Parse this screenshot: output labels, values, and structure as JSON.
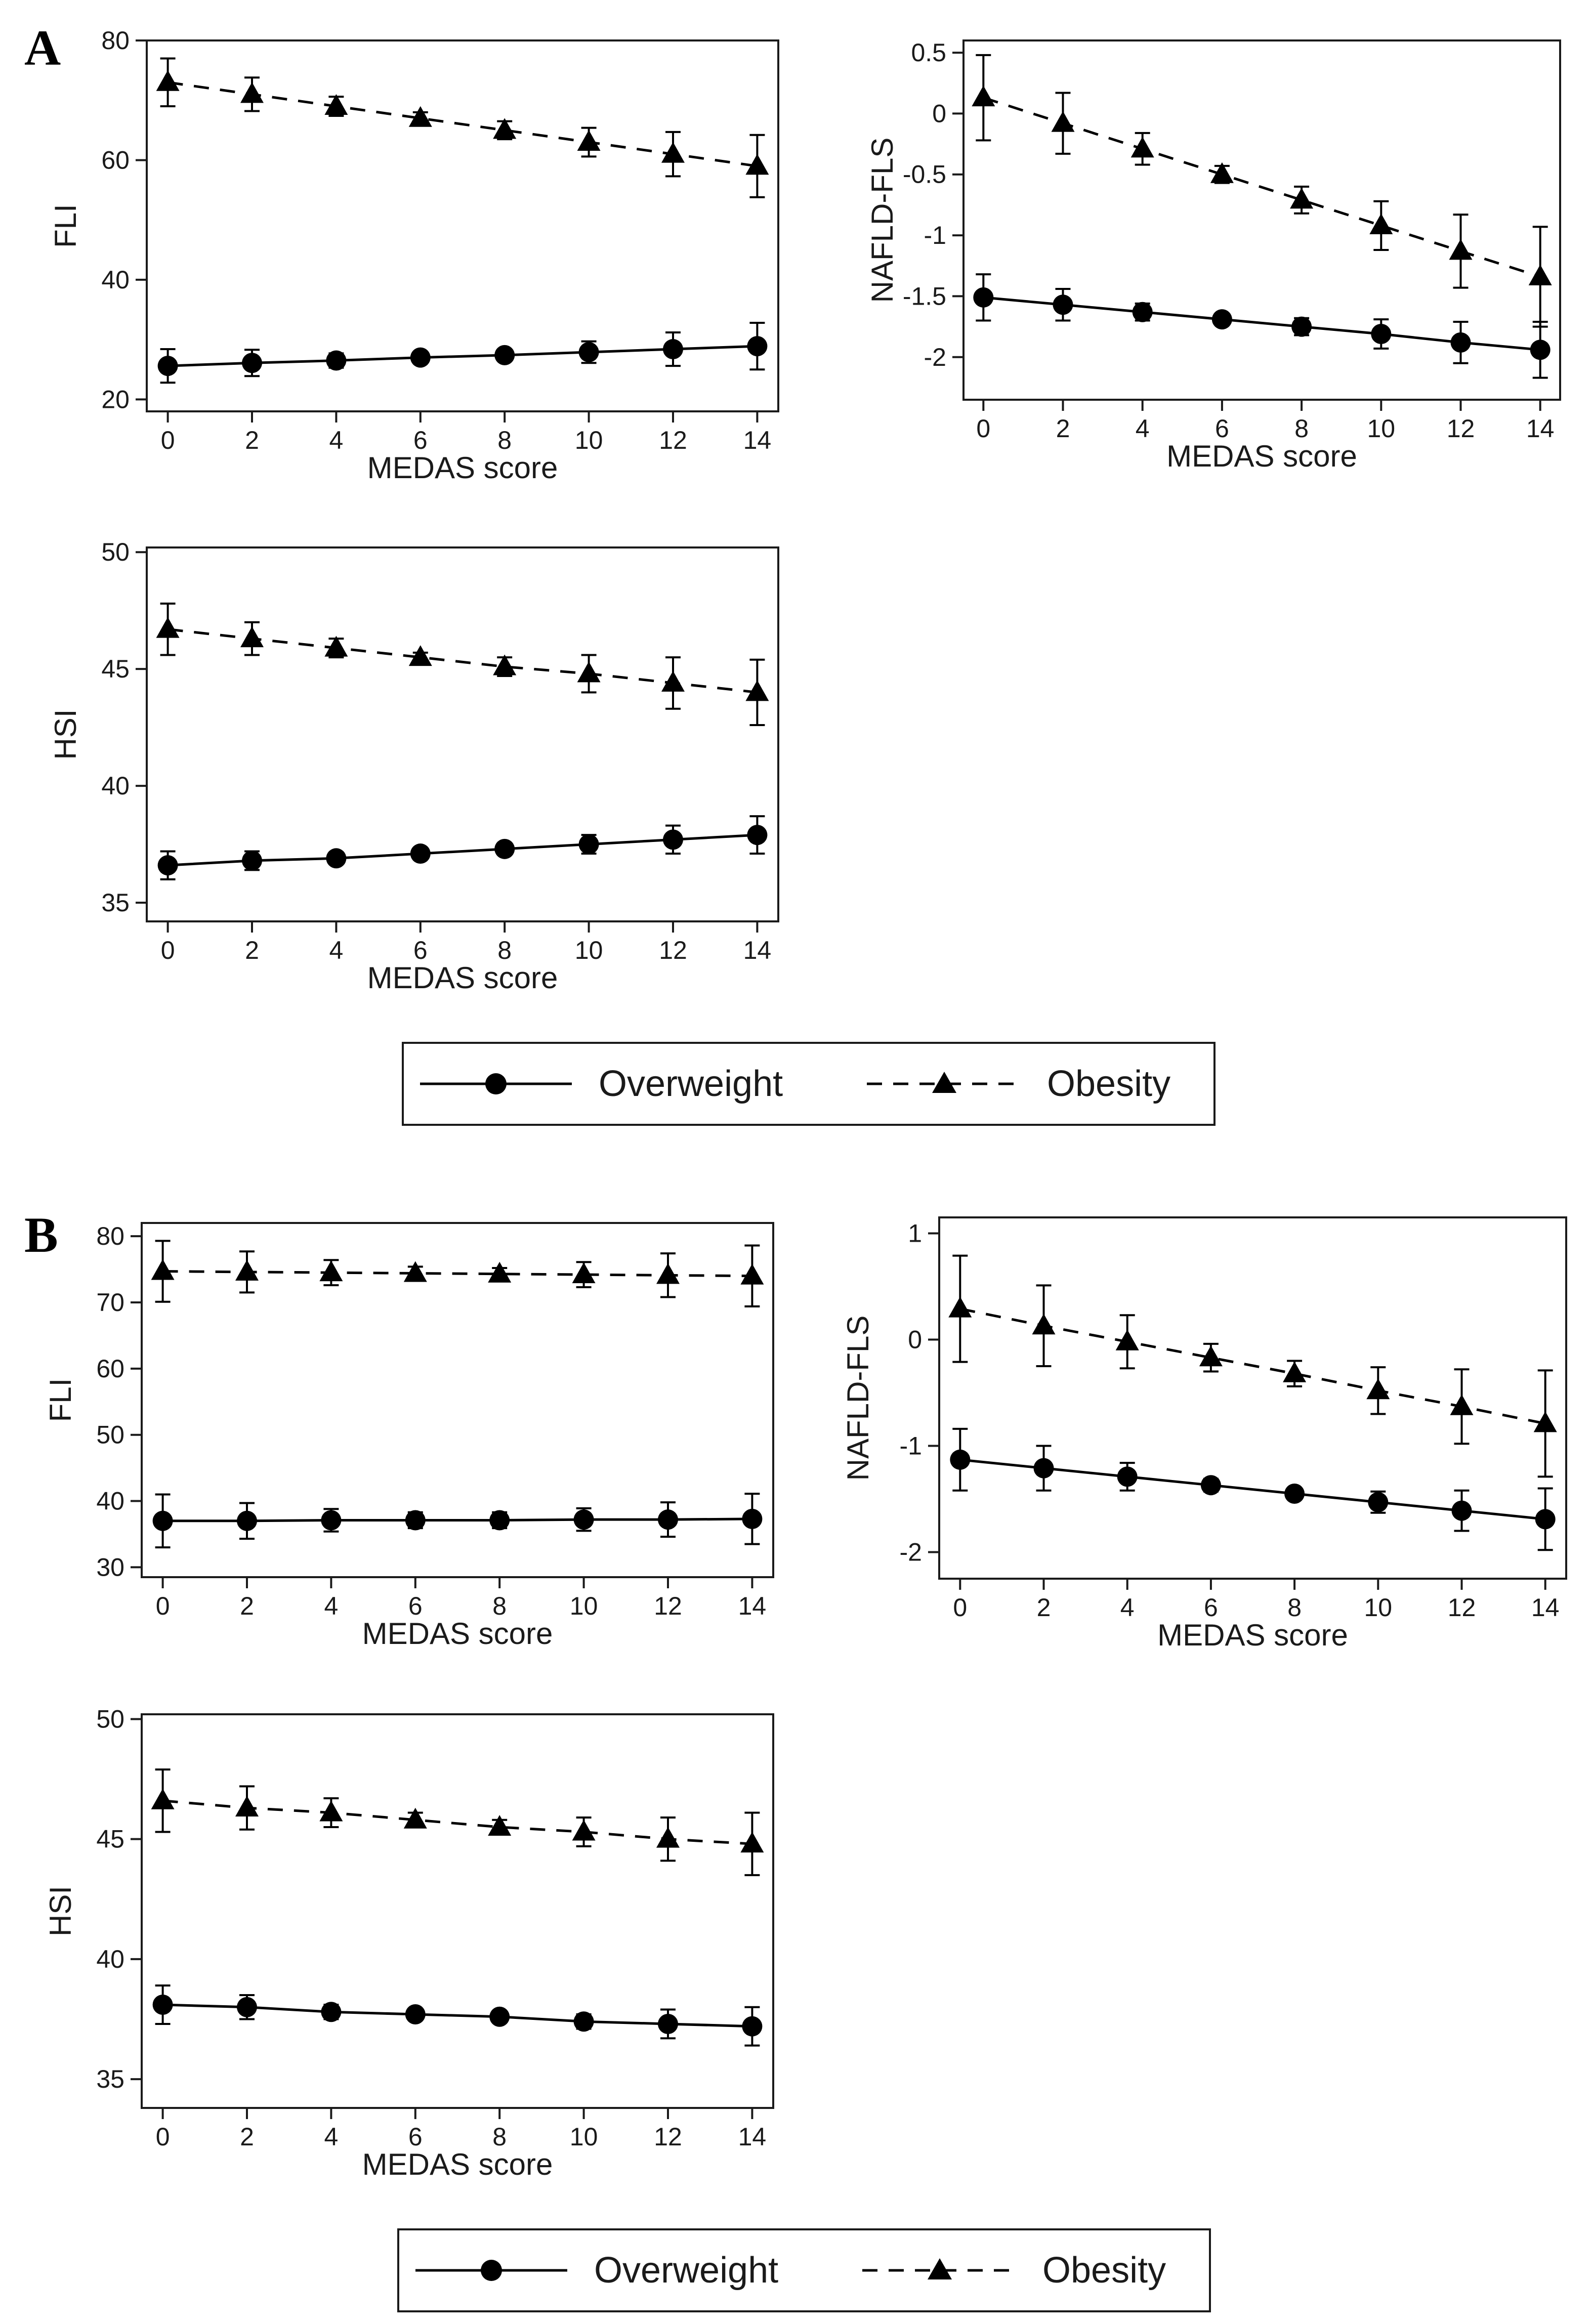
{
  "panel_labels": [
    "A",
    "B"
  ],
  "legend": {
    "overweight": "Overweight",
    "obesity": "Obesity"
  },
  "chart_data": [
    {
      "panel": "A",
      "type": "line",
      "xlabel": "MEDAS score",
      "ylabel": "FLI",
      "x": [
        0,
        2,
        4,
        6,
        8,
        10,
        12,
        14
      ],
      "xticks": [
        "0",
        "2",
        "4",
        "6",
        "8",
        "10",
        "12",
        "14"
      ],
      "xlim": [
        -0.5,
        14.5
      ],
      "yticks": [
        20,
        40,
        60,
        80
      ],
      "ytick_labels": [
        "20",
        "40",
        "60",
        "80"
      ],
      "ylim": [
        18,
        80
      ],
      "series": [
        {
          "name": "Overweight",
          "marker": "circle",
          "line": "solid",
          "values": [
            25.6,
            26.1,
            26.5,
            27.0,
            27.4,
            27.9,
            28.4,
            28.9
          ],
          "err_low": [
            22.8,
            23.9,
            25.3,
            26.3,
            26.6,
            26.1,
            25.6,
            25.0
          ],
          "err_high": [
            28.4,
            28.3,
            27.7,
            27.7,
            28.2,
            29.7,
            31.2,
            32.8
          ]
        },
        {
          "name": "Obesity",
          "marker": "triangle",
          "line": "dashed",
          "values": [
            73.0,
            71.0,
            69.0,
            67.0,
            65.0,
            63.0,
            61.0,
            59.0
          ],
          "err_low": [
            69.0,
            68.2,
            67.4,
            66.0,
            63.5,
            60.6,
            57.3,
            53.8
          ],
          "err_high": [
            77.0,
            73.8,
            70.6,
            68.0,
            66.5,
            65.4,
            64.7,
            64.2
          ]
        }
      ]
    },
    {
      "panel": "A",
      "type": "line",
      "xlabel": "MEDAS score",
      "ylabel": "NAFLD-FLS",
      "x": [
        0,
        2,
        4,
        6,
        8,
        10,
        12,
        14
      ],
      "xticks": [
        "0",
        "2",
        "4",
        "6",
        "8",
        "10",
        "12",
        "14"
      ],
      "xlim": [
        -0.5,
        14.5
      ],
      "yticks": [
        -2,
        -1.5,
        -1,
        -0.5,
        0,
        0.5
      ],
      "ytick_labels": [
        "-2",
        "-1.5",
        "-1",
        "-0.5",
        "0",
        "0.5"
      ],
      "ylim": [
        -2.35,
        0.6
      ],
      "series": [
        {
          "name": "Overweight",
          "marker": "circle",
          "line": "solid",
          "values": [
            -1.51,
            -1.57,
            -1.63,
            -1.69,
            -1.75,
            -1.81,
            -1.88,
            -1.94
          ],
          "err_low": [
            -1.7,
            -1.7,
            -1.7,
            -1.73,
            -1.82,
            -1.93,
            -2.05,
            -2.17
          ],
          "err_high": [
            -1.32,
            -1.44,
            -1.56,
            -1.65,
            -1.68,
            -1.69,
            -1.71,
            -1.71
          ]
        },
        {
          "name": "Obesity",
          "marker": "triangle",
          "line": "dashed",
          "values": [
            0.13,
            -0.08,
            -0.29,
            -0.5,
            -0.71,
            -0.92,
            -1.13,
            -1.34
          ],
          "err_low": [
            -0.22,
            -0.33,
            -0.42,
            -0.57,
            -0.82,
            -1.12,
            -1.43,
            -1.75
          ],
          "err_high": [
            0.48,
            0.17,
            -0.16,
            -0.43,
            -0.6,
            -0.72,
            -0.83,
            -0.93
          ]
        }
      ]
    },
    {
      "panel": "A",
      "type": "line",
      "xlabel": "MEDAS score",
      "ylabel": "HSI",
      "x": [
        0,
        2,
        4,
        6,
        8,
        10,
        12,
        14
      ],
      "xticks": [
        "0",
        "2",
        "4",
        "6",
        "8",
        "10",
        "12",
        "14"
      ],
      "xlim": [
        -0.5,
        14.5
      ],
      "yticks": [
        35,
        40,
        45,
        50
      ],
      "ytick_labels": [
        "35",
        "40",
        "45",
        "50"
      ],
      "ylim": [
        34.2,
        50.2
      ],
      "series": [
        {
          "name": "Overweight",
          "marker": "circle",
          "line": "solid",
          "values": [
            36.6,
            36.8,
            36.9,
            37.1,
            37.3,
            37.5,
            37.7,
            37.9
          ],
          "err_low": [
            36.0,
            36.4,
            36.7,
            37.0,
            37.1,
            37.1,
            37.1,
            37.1
          ],
          "err_high": [
            37.2,
            37.2,
            37.1,
            37.2,
            37.5,
            37.9,
            38.3,
            38.7
          ]
        },
        {
          "name": "Obesity",
          "marker": "triangle",
          "line": "dashed",
          "values": [
            46.7,
            46.3,
            45.9,
            45.5,
            45.1,
            44.8,
            44.4,
            44.0
          ],
          "err_low": [
            45.6,
            45.6,
            45.5,
            45.3,
            44.7,
            44.0,
            43.3,
            42.6
          ],
          "err_high": [
            47.8,
            47.0,
            46.3,
            45.7,
            45.5,
            45.6,
            45.5,
            45.4
          ]
        }
      ]
    },
    {
      "panel": "B",
      "type": "line",
      "xlabel": "MEDAS score",
      "ylabel": "FLI",
      "x": [
        0,
        2,
        4,
        6,
        8,
        10,
        12,
        14
      ],
      "xticks": [
        "0",
        "2",
        "4",
        "6",
        "8",
        "10",
        "12",
        "14"
      ],
      "xlim": [
        -0.5,
        14.5
      ],
      "yticks": [
        30,
        40,
        50,
        60,
        70,
        80
      ],
      "ytick_labels": [
        "30",
        "40",
        "50",
        "60",
        "70",
        "80"
      ],
      "ylim": [
        28.5,
        82
      ],
      "series": [
        {
          "name": "Overweight",
          "marker": "circle",
          "line": "solid",
          "values": [
            37.0,
            37.0,
            37.1,
            37.1,
            37.1,
            37.2,
            37.2,
            37.3
          ],
          "err_low": [
            33.0,
            34.3,
            35.4,
            35.9,
            35.9,
            35.5,
            34.6,
            33.5
          ],
          "err_high": [
            41.0,
            39.7,
            38.8,
            38.3,
            38.3,
            38.9,
            39.8,
            41.1
          ]
        },
        {
          "name": "Obesity",
          "marker": "triangle",
          "line": "dashed",
          "values": [
            74.7,
            74.6,
            74.5,
            74.4,
            74.3,
            74.2,
            74.1,
            74.0
          ],
          "err_low": [
            70.1,
            71.5,
            72.6,
            73.4,
            73.4,
            72.3,
            70.8,
            69.4
          ],
          "err_high": [
            79.3,
            77.7,
            76.4,
            75.4,
            75.2,
            76.1,
            77.4,
            78.6
          ]
        }
      ]
    },
    {
      "panel": "B",
      "type": "line",
      "xlabel": "MEDAS score",
      "ylabel": "NAFLD-FLS",
      "x": [
        0,
        2,
        4,
        6,
        8,
        10,
        12,
        14
      ],
      "xticks": [
        "0",
        "2",
        "4",
        "6",
        "8",
        "10",
        "12",
        "14"
      ],
      "xlim": [
        -0.5,
        14.5
      ],
      "yticks": [
        -2,
        -1,
        0,
        1
      ],
      "ytick_labels": [
        "-2",
        "-1",
        "0",
        "1"
      ],
      "ylim": [
        -2.25,
        1.15
      ],
      "series": [
        {
          "name": "Overweight",
          "marker": "circle",
          "line": "solid",
          "values": [
            -1.13,
            -1.21,
            -1.29,
            -1.37,
            -1.45,
            -1.53,
            -1.61,
            -1.69
          ],
          "err_low": [
            -1.42,
            -1.42,
            -1.42,
            -1.43,
            -1.5,
            -1.63,
            -1.8,
            -1.98
          ],
          "err_high": [
            -0.84,
            -1.0,
            -1.16,
            -1.31,
            -1.4,
            -1.43,
            -1.42,
            -1.4
          ]
        },
        {
          "name": "Obesity",
          "marker": "triangle",
          "line": "dashed",
          "values": [
            0.29,
            0.13,
            -0.02,
            -0.17,
            -0.32,
            -0.48,
            -0.63,
            -0.79
          ],
          "err_low": [
            -0.21,
            -0.25,
            -0.27,
            -0.3,
            -0.44,
            -0.7,
            -0.98,
            -1.29
          ],
          "err_high": [
            0.79,
            0.51,
            0.23,
            -0.04,
            -0.2,
            -0.26,
            -0.28,
            -0.29
          ]
        }
      ]
    },
    {
      "panel": "B",
      "type": "line",
      "xlabel": "MEDAS score",
      "ylabel": "HSI",
      "x": [
        0,
        2,
        4,
        6,
        8,
        10,
        12,
        14
      ],
      "xticks": [
        "0",
        "2",
        "4",
        "6",
        "8",
        "10",
        "12",
        "14"
      ],
      "xlim": [
        -0.5,
        14.5
      ],
      "yticks": [
        35,
        40,
        45,
        50
      ],
      "ytick_labels": [
        "35",
        "40",
        "45",
        "50"
      ],
      "ylim": [
        33.8,
        50.2
      ],
      "series": [
        {
          "name": "Overweight",
          "marker": "circle",
          "line": "solid",
          "values": [
            38.1,
            38.0,
            37.8,
            37.7,
            37.6,
            37.4,
            37.3,
            37.2
          ],
          "err_low": [
            37.3,
            37.5,
            37.5,
            37.5,
            37.4,
            37.1,
            36.7,
            36.4
          ],
          "err_high": [
            38.9,
            38.5,
            38.1,
            37.9,
            37.8,
            37.7,
            37.9,
            38.0
          ]
        },
        {
          "name": "Obesity",
          "marker": "triangle",
          "line": "dashed",
          "values": [
            46.6,
            46.3,
            46.1,
            45.8,
            45.5,
            45.3,
            45.0,
            44.8
          ],
          "err_low": [
            45.3,
            45.4,
            45.5,
            45.5,
            45.2,
            44.7,
            44.1,
            43.5
          ],
          "err_high": [
            47.9,
            47.2,
            46.7,
            46.1,
            45.8,
            45.9,
            45.9,
            46.1
          ]
        }
      ]
    }
  ]
}
